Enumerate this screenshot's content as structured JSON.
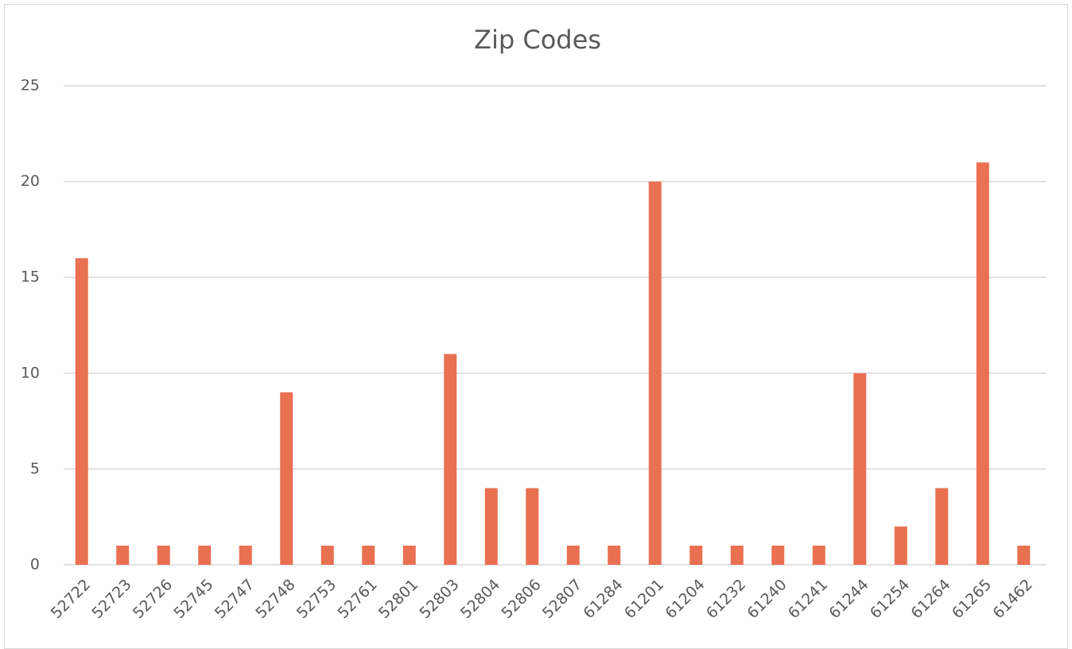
{
  "chart_data": {
    "type": "bar",
    "title": "Zip Codes",
    "categories": [
      "52722",
      "52723",
      "52726",
      "52745",
      "52747",
      "52748",
      "52753",
      "52761",
      "52801",
      "52803",
      "52804",
      "52806",
      "52807",
      "61284",
      "61201",
      "61204",
      "61232",
      "61240",
      "61241",
      "61244",
      "61254",
      "61264",
      "61265",
      "61462"
    ],
    "values": [
      16,
      1,
      1,
      1,
      1,
      9,
      1,
      1,
      1,
      11,
      4,
      4,
      1,
      1,
      20,
      1,
      1,
      1,
      1,
      10,
      2,
      4,
      21,
      1
    ],
    "color": "#e97051",
    "ylim": [
      0,
      25
    ],
    "yticks": [
      0,
      5,
      10,
      15,
      20,
      25
    ],
    "grid": true
  }
}
